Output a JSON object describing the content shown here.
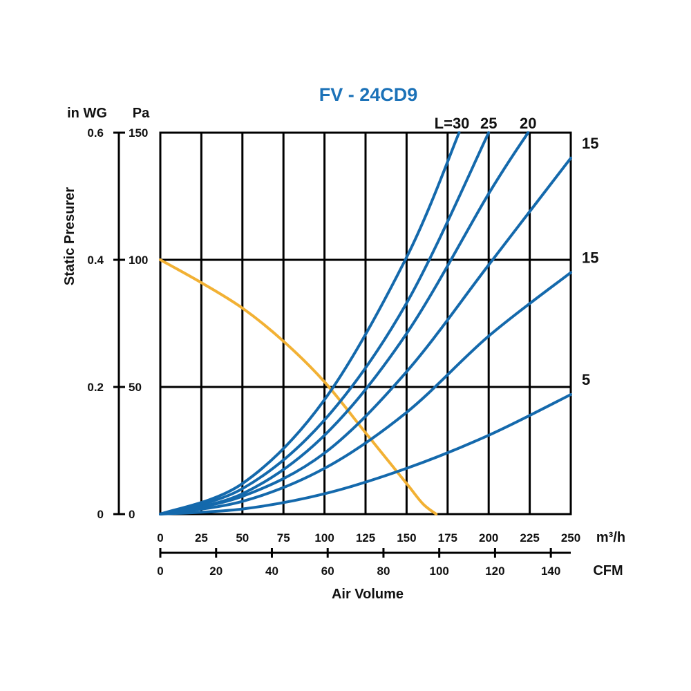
{
  "chart_data": {
    "type": "line",
    "title": "FV - 24CD9",
    "ylabel": "Static Presurer",
    "xlabel": "Air Volume",
    "y_units": {
      "left_outer": "in WG",
      "left_inner": "Pa"
    },
    "x_units": {
      "primary": "m³/h",
      "secondary": "CFM"
    },
    "x_range_m3h": [
      0,
      250
    ],
    "y_range_pa": [
      0,
      150
    ],
    "y_ticks_inwg": [
      "0.6",
      "0.4",
      "0.2",
      "0"
    ],
    "y_ticks_pa": [
      "150",
      "100",
      "50",
      "0"
    ],
    "x_ticks_m3h": [
      "0",
      "25",
      "50",
      "75",
      "100",
      "125",
      "150",
      "175",
      "200",
      "225",
      "250"
    ],
    "x_ticks_cfm": [
      "0",
      "20",
      "40",
      "60",
      "80",
      "100",
      "120",
      "140"
    ],
    "grid": true,
    "colors": {
      "fan_curve": "#F2B134",
      "system_curves": "#1469AC",
      "title": "#1C72B8"
    },
    "series": [
      {
        "name": "Fan curve",
        "x": [
          0,
          25,
          50,
          75,
          100,
          125,
          150,
          160,
          168
        ],
        "y": [
          100,
          91,
          81,
          68,
          52,
          32,
          12,
          4,
          0
        ]
      },
      {
        "name": "L=30",
        "label": "L=30",
        "x": [
          0,
          50,
          100,
          150,
          182
        ],
        "y": [
          0,
          12,
          45,
          101,
          150
        ]
      },
      {
        "name": "L=25",
        "label": "25",
        "x": [
          0,
          50,
          100,
          150,
          200
        ],
        "y": [
          0,
          10,
          37,
          83,
          150
        ]
      },
      {
        "name": "L=20",
        "label": "20",
        "x": [
          0,
          50,
          100,
          150,
          200,
          224
        ],
        "y": [
          0,
          8,
          31,
          71,
          126,
          150
        ]
      },
      {
        "name": "15 (upper)",
        "label": "15",
        "x": [
          0,
          50,
          100,
          150,
          200,
          250
        ],
        "y": [
          0,
          7,
          24,
          56,
          98,
          140
        ]
      },
      {
        "name": "15 (lower)",
        "label": "15",
        "x": [
          0,
          50,
          100,
          150,
          200,
          250
        ],
        "y": [
          0,
          5,
          18,
          40,
          70,
          95
        ]
      },
      {
        "name": "5",
        "label": "5",
        "x": [
          0,
          50,
          100,
          150,
          200,
          250
        ],
        "y": [
          0,
          2,
          8,
          18,
          31,
          47
        ]
      }
    ]
  }
}
